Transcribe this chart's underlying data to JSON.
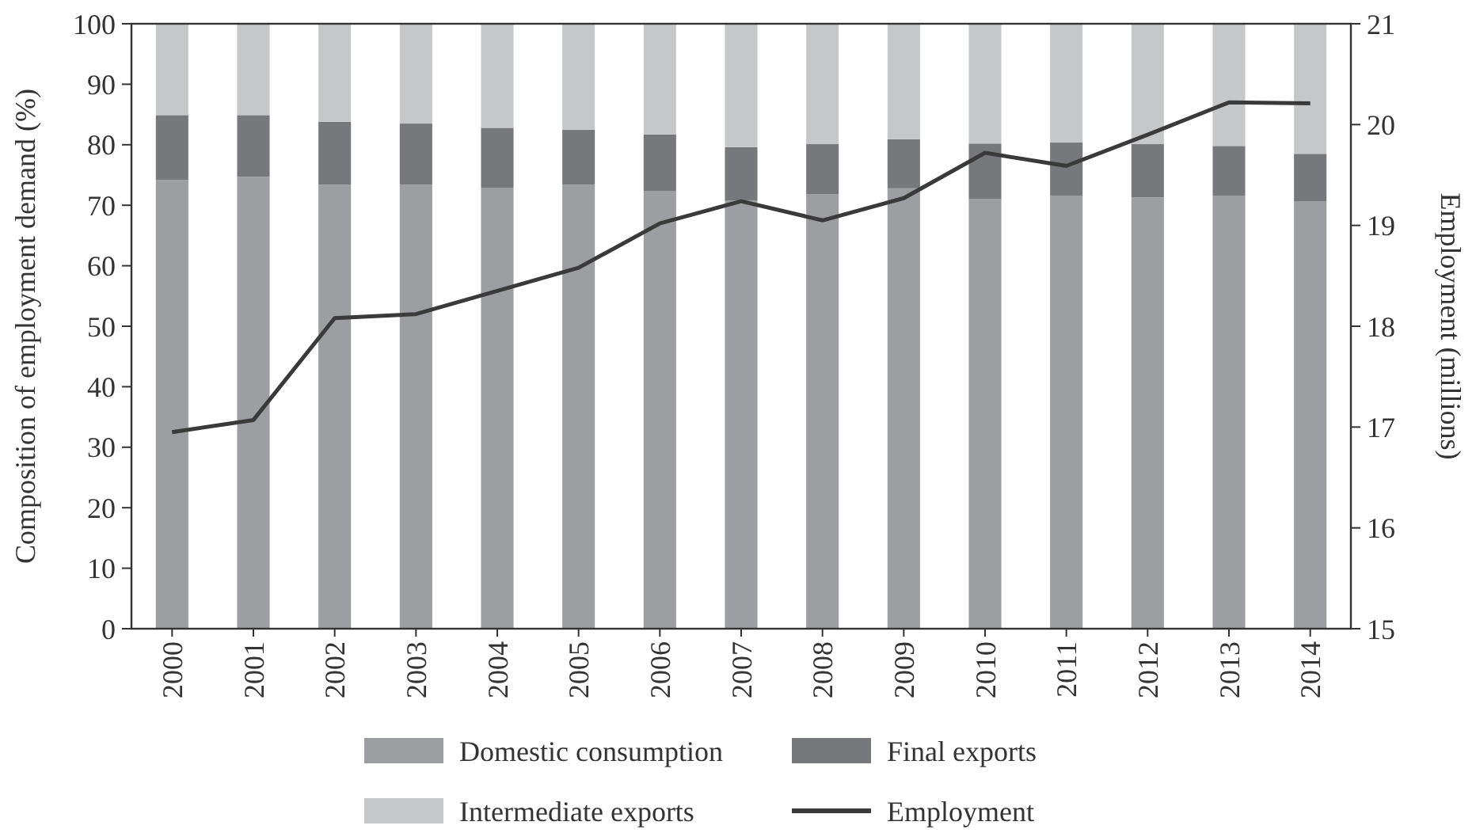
{
  "chart_data": {
    "type": "bar",
    "stacked": true,
    "ylabel": "Composition of employment demand (%)",
    "y2label": "Employment (millions)",
    "categories": [
      "2000",
      "2001",
      "2002",
      "2003",
      "2004",
      "2005",
      "2006",
      "2007",
      "2008",
      "2009",
      "2010",
      "2011",
      "2012",
      "2013",
      "2014"
    ],
    "series": [
      {
        "name": "Domestic consumption",
        "color": "#9d9ea2",
        "values": [
          74.2,
          74.7,
          73.4,
          73.4,
          72.9,
          73.4,
          72.3,
          70.8,
          71.8,
          72.8,
          71.0,
          71.6,
          71.3,
          71.6,
          70.6
        ]
      },
      {
        "name": "Final exports",
        "color": "#77787c",
        "values": [
          10.7,
          10.2,
          10.4,
          10.1,
          9.9,
          9.1,
          9.4,
          8.8,
          8.3,
          8.1,
          9.2,
          8.8,
          8.8,
          8.2,
          7.9
        ]
      },
      {
        "name": "Intermediate exports",
        "color": "#c6c7c9",
        "values": [
          15.1,
          15.1,
          16.2,
          16.5,
          17.2,
          17.5,
          18.3,
          20.4,
          19.9,
          19.1,
          19.8,
          19.6,
          19.9,
          20.2,
          21.5
        ]
      },
      {
        "name": "Employment",
        "type": "line",
        "axis": "y2",
        "color": "#3a3a3a",
        "values": [
          16.95,
          17.07,
          18.08,
          18.12,
          18.35,
          18.58,
          19.02,
          19.24,
          19.05,
          19.27,
          19.72,
          19.59,
          19.9,
          20.22,
          20.21
        ]
      }
    ],
    "ylim": [
      0,
      100
    ],
    "yticks": [
      0,
      10,
      20,
      30,
      40,
      50,
      60,
      70,
      80,
      90,
      100
    ],
    "y2lim": [
      15,
      21
    ],
    "y2ticks": [
      15,
      16,
      17,
      18,
      19,
      20,
      21
    ],
    "legend": "bottom",
    "grid": false
  }
}
